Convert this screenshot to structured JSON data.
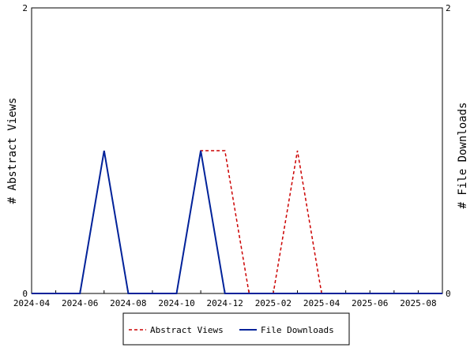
{
  "chart_data": {
    "type": "line",
    "x": [
      "2024-04-01",
      "2024-05-01",
      "2024-06-01",
      "2024-07-01",
      "2024-08-01",
      "2024-09-01",
      "2024-10-01",
      "2024-11-01",
      "2024-12-01",
      "2025-01-01",
      "2025-02-01",
      "2025-03-01",
      "2025-04-01",
      "2025-05-01",
      "2025-06-01",
      "2025-07-01",
      "2025-08-01",
      "2025-09-01"
    ],
    "x_tick_labels": [
      "2024-04",
      "2024-06",
      "2024-08",
      "2024-10",
      "2024-12",
      "2025-02",
      "2025-04",
      "2025-06",
      "2025-08"
    ],
    "series": [
      {
        "name": "Abstract Views",
        "axis": "left",
        "color": "#cc0000",
        "dash": "dashed",
        "values": [
          0,
          0,
          0,
          1,
          0,
          0,
          0,
          1,
          1,
          0,
          0,
          1,
          0,
          0,
          0,
          0,
          0,
          0
        ]
      },
      {
        "name": "File Downloads",
        "axis": "right",
        "color": "#00229a",
        "dash": "solid",
        "values": [
          0,
          0,
          0,
          1,
          0,
          0,
          0,
          1,
          0,
          0,
          0,
          0,
          0,
          0,
          0,
          0,
          0,
          0
        ]
      }
    ],
    "ylabel": "# Abstract Views",
    "y2label": "# File Downloads",
    "ylim": [
      0,
      2
    ],
    "y2lim": [
      0,
      2
    ],
    "yticks": [
      "0",
      "2"
    ],
    "y2ticks": [
      "0",
      "2"
    ],
    "grid": false,
    "legend_position": "bottom"
  }
}
